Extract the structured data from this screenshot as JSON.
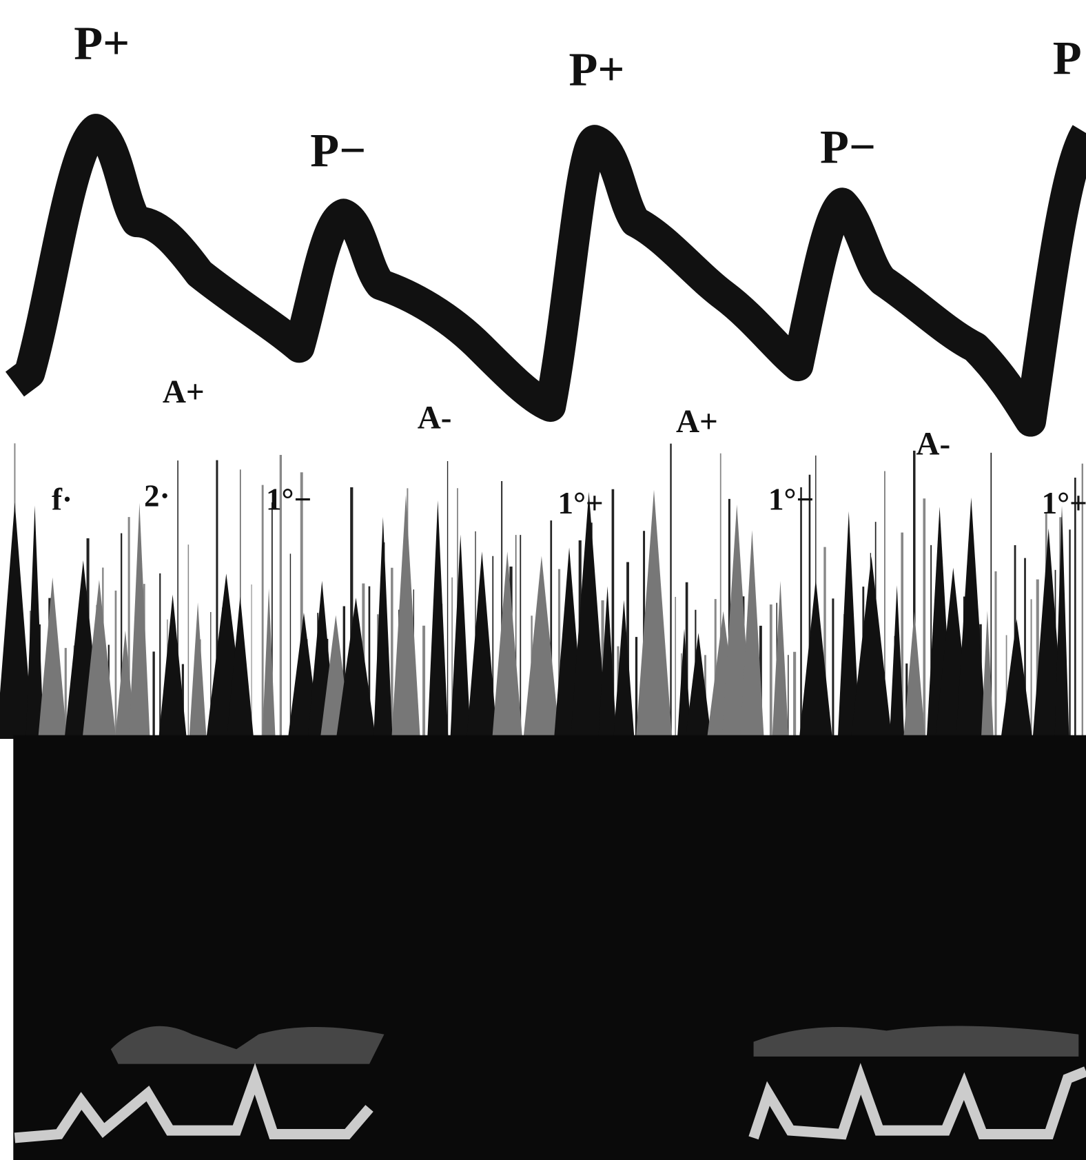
{
  "labels": [
    "P+",
    "P−",
    "P+",
    "P−",
    "P",
    "A+",
    "A-",
    "A+",
    "A-",
    "f·",
    "2·",
    "1°−",
    "1°+",
    "1°−",
    "1°+"
  ]
}
